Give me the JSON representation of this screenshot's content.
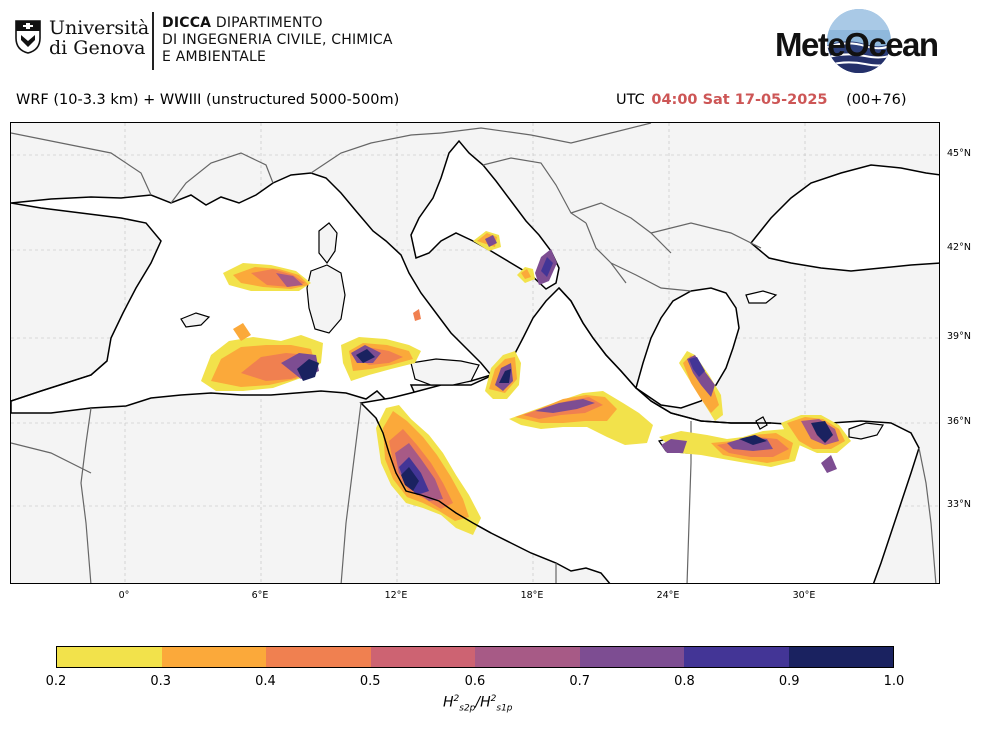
{
  "logos": {
    "unige_line1": "Università",
    "unige_line2": "di Genova",
    "dicca_bold": "DICCA",
    "dicca_line1": "DIPARTIMENTO",
    "dicca_line2": "DI INGEGNERIA CIVILE, CHIMICA",
    "dicca_line3": "E AMBIENTALE",
    "meteocean": "MeteOcean"
  },
  "header": {
    "model": "WRF (10-3.3 km) + WWIII (unstructured 5000-500m)",
    "utc_label": "UTC",
    "timestamp": "04:00 Sat 17-05-2025",
    "lead": "(00+76)"
  },
  "map": {
    "lat_ticks": [
      "45°N",
      "42°N",
      "39°N",
      "36°N",
      "33°N"
    ],
    "lon_ticks": [
      "0°",
      "6°E",
      "12°E",
      "18°E",
      "24°E",
      "30°E"
    ],
    "colors": {
      "land": "#f4f4f4",
      "sea": "#ffffff",
      "coast": "#000000",
      "border": "#666666"
    }
  },
  "colorbar": {
    "ticks": [
      "0.2",
      "0.3",
      "0.4",
      "0.5",
      "0.6",
      "0.7",
      "0.8",
      "0.9",
      "1.0"
    ],
    "colors": [
      "#f2e24b",
      "#fba93a",
      "#f08050",
      "#cd6372",
      "#a75a86",
      "#7d4d92",
      "#433596",
      "#1a2260"
    ],
    "label_var": "H",
    "label_num_sub": "s2p",
    "label_den_sub": "s1p",
    "label_sup": "2"
  }
}
